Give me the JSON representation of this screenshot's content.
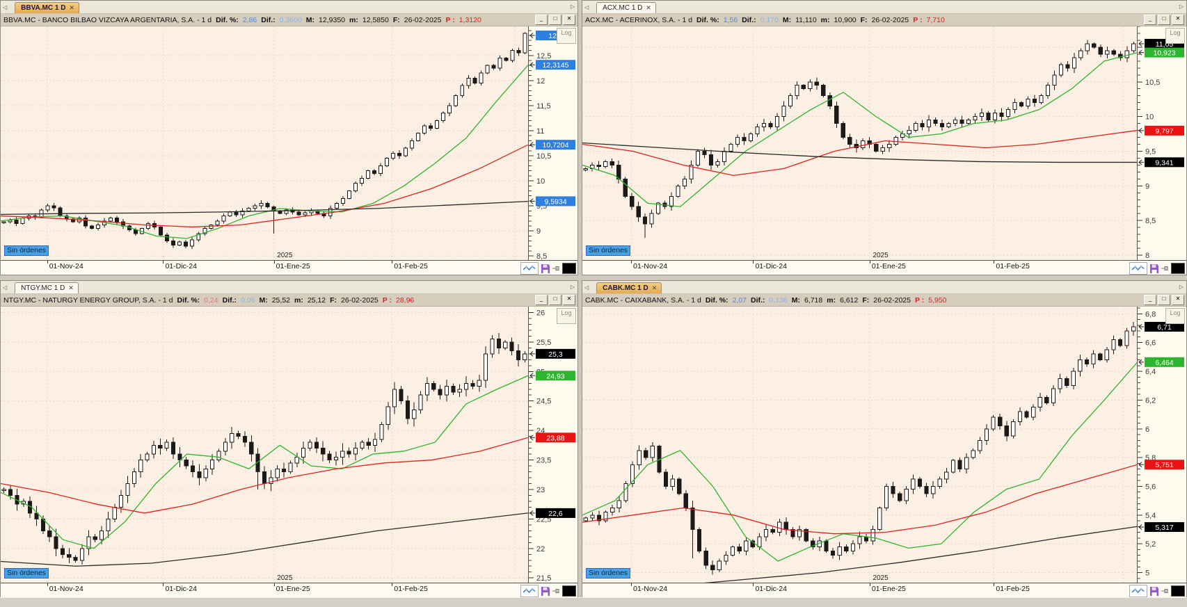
{
  "labels": {
    "sin_ordenes": "Sin órdenes",
    "log_button": "Log",
    "year_label": "2025",
    "nav_left": "◁",
    "nav_right": "▷",
    "tab_close": "✕",
    "minimize": "_",
    "maximize": "□",
    "close": "✕"
  },
  "header_labels": {
    "dif_pct": "Dif. %:",
    "dif": "Dif.:",
    "max": "M:",
    "min": "m:",
    "date": "F:",
    "price": "P :"
  },
  "colors": {
    "chart_bg": "#fcefe3",
    "scale_bg": "#fdfaee",
    "grid": "#e9d6c7",
    "candle": "#1a1a1a",
    "up_fill": "#ffffff",
    "ma_green": "#2db52d",
    "ma_red": "#e32020",
    "ma_black": "#2a2a2a",
    "marker_blue": "#2f7fe0",
    "marker_green": "#2db52d",
    "marker_red": "#ea1212",
    "marker_black": "#000000",
    "active_tab": "#e9b25f",
    "sin_ordenes_bg": "#49a0e4",
    "p_red": "#e02020",
    "dif_blue": "#4d8ae0",
    "dif_light_blue": "#8fb3ea",
    "dif_salmon": "#e07a7a"
  },
  "x_axis": {
    "tick_positions": [
      0.088,
      0.308,
      0.518,
      0.742
    ],
    "extra_gridline": 0.975,
    "year_position": 0.52
  },
  "panels": [
    {
      "id": "bbva",
      "tab": "BBVA.MC 1 D",
      "active": true,
      "header": {
        "title": "BBVA.MC - BANCO BILBAO VIZCAYA ARGENTARIA, S.A. - 1 d",
        "dif_pct": "2,86",
        "dif_pct_color": "#4d8ae0",
        "dif": "0,3600",
        "dif_color": "#8fb3ea",
        "max": "12,9350",
        "min": "12,5850",
        "date": "26-02-2025",
        "price": "1,3120"
      },
      "chart_data": {
        "type": "candlestick",
        "x_ticks": [
          "01-Nov-24",
          "01-Dic-24",
          "01-Ene-25",
          "01-Feb-25"
        ],
        "ylim": [
          8.42,
          13.08
        ],
        "y_ticks": [
          8.5,
          9,
          9.5,
          10,
          10.5,
          11,
          11.5,
          12,
          12.5
        ],
        "y_tick_step": 0.5,
        "wick": 0.06,
        "wick_overrides": {
          "43": [
            0.03,
            0.45
          ]
        },
        "closes": [
          9.18,
          9.22,
          9.15,
          9.25,
          9.3,
          9.28,
          9.42,
          9.5,
          9.46,
          9.3,
          9.24,
          9.18,
          9.26,
          9.1,
          9.05,
          9.12,
          9.2,
          9.26,
          9.18,
          9.1,
          9.02,
          8.95,
          9.05,
          9.15,
          9.08,
          8.92,
          8.8,
          8.72,
          8.78,
          8.7,
          8.82,
          8.95,
          9.05,
          9.12,
          9.2,
          9.3,
          9.38,
          9.32,
          9.4,
          9.45,
          9.5,
          9.55,
          9.48,
          9.4,
          9.35,
          9.42,
          9.38,
          9.32,
          9.36,
          9.4,
          9.35,
          9.3,
          9.45,
          9.55,
          9.65,
          9.8,
          9.95,
          10.05,
          10.2,
          10.15,
          10.3,
          10.45,
          10.55,
          10.5,
          10.65,
          10.8,
          10.95,
          11.1,
          11.05,
          11.2,
          11.35,
          11.5,
          11.7,
          11.9,
          12.05,
          11.95,
          12.15,
          12.3,
          12.25,
          12.45,
          12.4,
          12.6,
          12.55,
          12.94
        ],
        "moving_averages": [
          {
            "name": "short-ma",
            "color": "#2db52d",
            "values": [
              9.2,
              9.28,
              9.3,
              9.2,
              9.1,
              8.9,
              8.85,
              9.05,
              9.3,
              9.45,
              9.4,
              9.38,
              9.55,
              9.9,
              10.35,
              10.85,
              11.6,
              12.31
            ]
          },
          {
            "name": "medium-ma",
            "color": "#e32020",
            "values": [
              9.3,
              9.26,
              9.2,
              9.12,
              9.08,
              9.12,
              9.25,
              9.38,
              9.55,
              9.85,
              10.25,
              10.72
            ]
          },
          {
            "name": "long-ma",
            "color": "#2a2a2a",
            "values": [
              9.33,
              9.35,
              9.36,
              9.38,
              9.41,
              9.45,
              9.52,
              9.59
            ]
          }
        ],
        "markers": [
          {
            "text": "12,9",
            "value": 12.9,
            "bg": "#2f7fe0",
            "fg": "#ffffff"
          },
          {
            "text": "12,3145",
            "value": 12.3145,
            "bg": "#2f7fe0",
            "fg": "#ffffff"
          },
          {
            "text": "10,7204",
            "value": 10.7204,
            "bg": "#2f7fe0",
            "fg": "#ffffff"
          },
          {
            "text": "9,5934",
            "value": 9.5934,
            "bg": "#2f7fe0",
            "fg": "#ffffff"
          }
        ]
      }
    },
    {
      "id": "acx",
      "tab": "ACX.MC 1 D",
      "active": false,
      "header": {
        "title": "ACX.MC - ACERINOX, S.A. - 1 d",
        "dif_pct": "1,56",
        "dif_pct_color": "#4d8ae0",
        "dif": "0,170",
        "dif_color": "#8fb3ea",
        "max": "11,110",
        "min": "10,900",
        "date": "26-02-2025",
        "price": "7,710"
      },
      "chart_data": {
        "type": "candlestick",
        "x_ticks": [
          "01-Nov-24",
          "01-Dic-24",
          "01-Ene-25",
          "01-Feb-25"
        ],
        "ylim": [
          7.93,
          11.3
        ],
        "y_ticks": [
          8,
          8.5,
          9,
          9.5,
          10,
          10.5,
          11
        ],
        "y_tick_step": 0.5,
        "wick": 0.07,
        "wick_overrides": {
          "9": [
            0.05,
            0.2
          ]
        },
        "closes": [
          9.25,
          9.3,
          9.28,
          9.35,
          9.3,
          9.1,
          8.85,
          8.7,
          8.55,
          8.45,
          8.6,
          8.75,
          8.7,
          8.85,
          9.0,
          9.1,
          9.3,
          9.5,
          9.45,
          9.3,
          9.35,
          9.5,
          9.6,
          9.7,
          9.65,
          9.75,
          9.85,
          9.9,
          9.85,
          10.0,
          10.15,
          10.3,
          10.45,
          10.4,
          10.5,
          10.45,
          10.3,
          10.15,
          9.9,
          9.7,
          9.6,
          9.55,
          9.65,
          9.6,
          9.5,
          9.55,
          9.6,
          9.7,
          9.75,
          9.8,
          9.9,
          9.85,
          9.95,
          9.9,
          9.85,
          9.9,
          9.95,
          9.9,
          9.95,
          10.0,
          10.05,
          9.95,
          10.05,
          10.0,
          10.1,
          10.2,
          10.15,
          10.25,
          10.2,
          10.3,
          10.45,
          10.6,
          10.75,
          10.7,
          10.85,
          10.95,
          11.05,
          11.0,
          10.9,
          10.95,
          10.9,
          10.85,
          10.95,
          11.05
        ],
        "moving_averages": [
          {
            "name": "short-ma",
            "color": "#2db52d",
            "values": [
              9.3,
              9.15,
              8.75,
              8.7,
              9.1,
              9.5,
              9.8,
              10.1,
              10.35,
              10.0,
              9.7,
              9.75,
              9.9,
              9.95,
              10.1,
              10.4,
              10.8,
              10.92
            ]
          },
          {
            "name": "medium-ma",
            "color": "#e32020",
            "values": [
              9.6,
              9.5,
              9.3,
              9.15,
              9.25,
              9.5,
              9.65,
              9.6,
              9.55,
              9.6,
              9.7,
              9.8
            ]
          },
          {
            "name": "long-ma",
            "color": "#2a2a2a",
            "values": [
              9.62,
              9.55,
              9.48,
              9.42,
              9.38,
              9.35,
              9.34,
              9.34
            ]
          }
        ],
        "markers": [
          {
            "text": "11,05",
            "value": 11.05,
            "bg": "#000000",
            "fg": "#ffffff"
          },
          {
            "text": "10,923",
            "value": 10.923,
            "bg": "#2db52d",
            "fg": "#ffffff"
          },
          {
            "text": "9,797",
            "value": 9.797,
            "bg": "#ea1212",
            "fg": "#ffffff"
          },
          {
            "text": "9,341",
            "value": 9.341,
            "bg": "#000000",
            "fg": "#ffffff"
          }
        ]
      }
    },
    {
      "id": "ntgy",
      "tab": "NTGY.MC 1 D",
      "active": false,
      "header": {
        "title": "NTGY.MC - NATURGY ENERGY GROUP, S.A. - 1 d",
        "dif_pct": "0,24",
        "dif_pct_color": "#e07a7a",
        "dif": "0,06",
        "dif_color": "#8fb3ea",
        "max": "25,52",
        "min": "25,12",
        "date": "26-02-2025",
        "price": "28,96"
      },
      "chart_data": {
        "type": "candlestick",
        "x_ticks": [
          "01-Nov-24",
          "01-Dic-24",
          "01-Ene-25",
          "01-Feb-25"
        ],
        "ylim": [
          21.42,
          26.1
        ],
        "y_ticks": [
          21.5,
          22,
          22.5,
          23,
          23.5,
          24,
          24.5,
          25,
          25.5,
          26
        ],
        "y_tick_step": 0.5,
        "wick": 0.13,
        "wick_overrides": {
          "39": [
            0.1,
            0.3
          ]
        },
        "closes": [
          23.0,
          22.9,
          22.75,
          22.8,
          22.6,
          22.5,
          22.3,
          22.2,
          22.0,
          21.9,
          21.85,
          21.8,
          22.0,
          22.2,
          22.15,
          22.3,
          22.5,
          22.7,
          22.9,
          23.1,
          23.3,
          23.5,
          23.6,
          23.75,
          23.7,
          23.8,
          23.6,
          23.5,
          23.4,
          23.3,
          23.2,
          23.35,
          23.5,
          23.65,
          23.8,
          23.95,
          23.9,
          23.8,
          23.6,
          23.3,
          23.1,
          23.2,
          23.35,
          23.3,
          23.45,
          23.55,
          23.7,
          23.8,
          23.7,
          23.6,
          23.5,
          23.55,
          23.65,
          23.6,
          23.7,
          23.8,
          23.75,
          23.85,
          24.1,
          24.4,
          24.7,
          24.5,
          24.2,
          24.35,
          24.6,
          24.8,
          24.7,
          24.6,
          24.75,
          24.65,
          24.7,
          24.8,
          24.75,
          24.85,
          25.3,
          25.55,
          25.4,
          25.5,
          25.35,
          25.2,
          25.3
        ],
        "moving_averages": [
          {
            "name": "short-ma",
            "color": "#2db52d",
            "values": [
              22.95,
              22.7,
              22.15,
              22.0,
              22.45,
              23.1,
              23.6,
              23.55,
              23.35,
              23.75,
              23.4,
              23.35,
              23.6,
              23.65,
              23.8,
              24.45,
              24.7,
              24.93
            ]
          },
          {
            "name": "medium-ma",
            "color": "#e32020",
            "values": [
              23.1,
              22.95,
              22.75,
              22.6,
              22.75,
              23.0,
              23.2,
              23.35,
              23.45,
              23.5,
              23.65,
              23.88
            ]
          },
          {
            "name": "long-ma",
            "color": "#2a2a2a",
            "values": [
              21.78,
              21.7,
              21.75,
              21.9,
              22.1,
              22.3,
              22.45,
              22.6
            ]
          }
        ],
        "markers": [
          {
            "text": "25,3",
            "value": 25.3,
            "bg": "#000000",
            "fg": "#ffffff"
          },
          {
            "text": "24,93",
            "value": 24.93,
            "bg": "#2db52d",
            "fg": "#ffffff"
          },
          {
            "text": "23,88",
            "value": 23.88,
            "bg": "#ea1212",
            "fg": "#ffffff"
          },
          {
            "text": "22,6",
            "value": 22.6,
            "bg": "#000000",
            "fg": "#ffffff"
          }
        ]
      }
    },
    {
      "id": "cabk",
      "tab": "CABK.MC 1 D",
      "active": true,
      "header": {
        "title": "CABK.MC - CAIXABANK, S.A. - 1 d",
        "dif_pct": "2,07",
        "dif_pct_color": "#4d8ae0",
        "dif": "0,136",
        "dif_color": "#8fb3ea",
        "max": "6,718",
        "min": "6,612",
        "date": "26-02-2025",
        "price": "5,950"
      },
      "chart_data": {
        "type": "candlestick",
        "x_ticks": [
          "01-Nov-24",
          "01-Dic-24",
          "01-Ene-25",
          "01-Feb-25"
        ],
        "ylim": [
          4.93,
          6.85
        ],
        "y_ticks": [
          5,
          5.2,
          5.4,
          5.6,
          5.8,
          6,
          6.2,
          6.4,
          6.6,
          6.8
        ],
        "y_tick_step": 0.2,
        "wick": 0.035,
        "wick_overrides": {
          "16": [
            0.05,
            0.2
          ]
        },
        "closes": [
          5.38,
          5.4,
          5.36,
          5.42,
          5.45,
          5.5,
          5.62,
          5.75,
          5.85,
          5.8,
          5.88,
          5.7,
          5.6,
          5.65,
          5.55,
          5.45,
          5.3,
          5.15,
          5.05,
          5.02,
          5.08,
          5.12,
          5.18,
          5.15,
          5.22,
          5.18,
          5.25,
          5.3,
          5.28,
          5.35,
          5.3,
          5.25,
          5.3,
          5.22,
          5.18,
          5.22,
          5.15,
          5.12,
          5.18,
          5.15,
          5.2,
          5.25,
          5.22,
          5.3,
          5.45,
          5.6,
          5.55,
          5.5,
          5.58,
          5.65,
          5.6,
          5.55,
          5.6,
          5.65,
          5.7,
          5.78,
          5.72,
          5.8,
          5.85,
          5.92,
          6.0,
          6.08,
          6.02,
          5.95,
          6.05,
          6.12,
          6.08,
          6.15,
          6.22,
          6.18,
          6.28,
          6.35,
          6.3,
          6.4,
          6.48,
          6.45,
          6.52,
          6.48,
          6.55,
          6.62,
          6.58,
          6.68,
          6.71
        ],
        "moving_averages": [
          {
            "name": "short-ma",
            "color": "#2db52d",
            "values": [
              5.4,
              5.5,
              5.75,
              5.85,
              5.6,
              5.25,
              5.08,
              5.18,
              5.27,
              5.24,
              5.17,
              5.2,
              5.42,
              5.58,
              5.65,
              5.95,
              6.2,
              6.46
            ]
          },
          {
            "name": "medium-ma",
            "color": "#e32020",
            "values": [
              5.35,
              5.4,
              5.45,
              5.4,
              5.3,
              5.27,
              5.28,
              5.33,
              5.42,
              5.55,
              5.65,
              5.75
            ]
          },
          {
            "name": "long-ma",
            "color": "#2a2a2a",
            "values": [
              4.85,
              4.9,
              4.95,
              5.0,
              5.07,
              5.15,
              5.24,
              5.32
            ]
          }
        ],
        "markers": [
          {
            "text": "6,71",
            "value": 6.71,
            "bg": "#000000",
            "fg": "#ffffff"
          },
          {
            "text": "6,464",
            "value": 6.464,
            "bg": "#2db52d",
            "fg": "#ffffff"
          },
          {
            "text": "5,751",
            "value": 5.751,
            "bg": "#ea1212",
            "fg": "#ffffff"
          },
          {
            "text": "5,317",
            "value": 5.317,
            "bg": "#000000",
            "fg": "#ffffff"
          }
        ]
      }
    }
  ],
  "footer_icons": [
    {
      "name": "line-chart-icon"
    },
    {
      "name": "save-icon"
    },
    {
      "name": "pin-icon"
    },
    {
      "name": "black-box-icon"
    }
  ]
}
